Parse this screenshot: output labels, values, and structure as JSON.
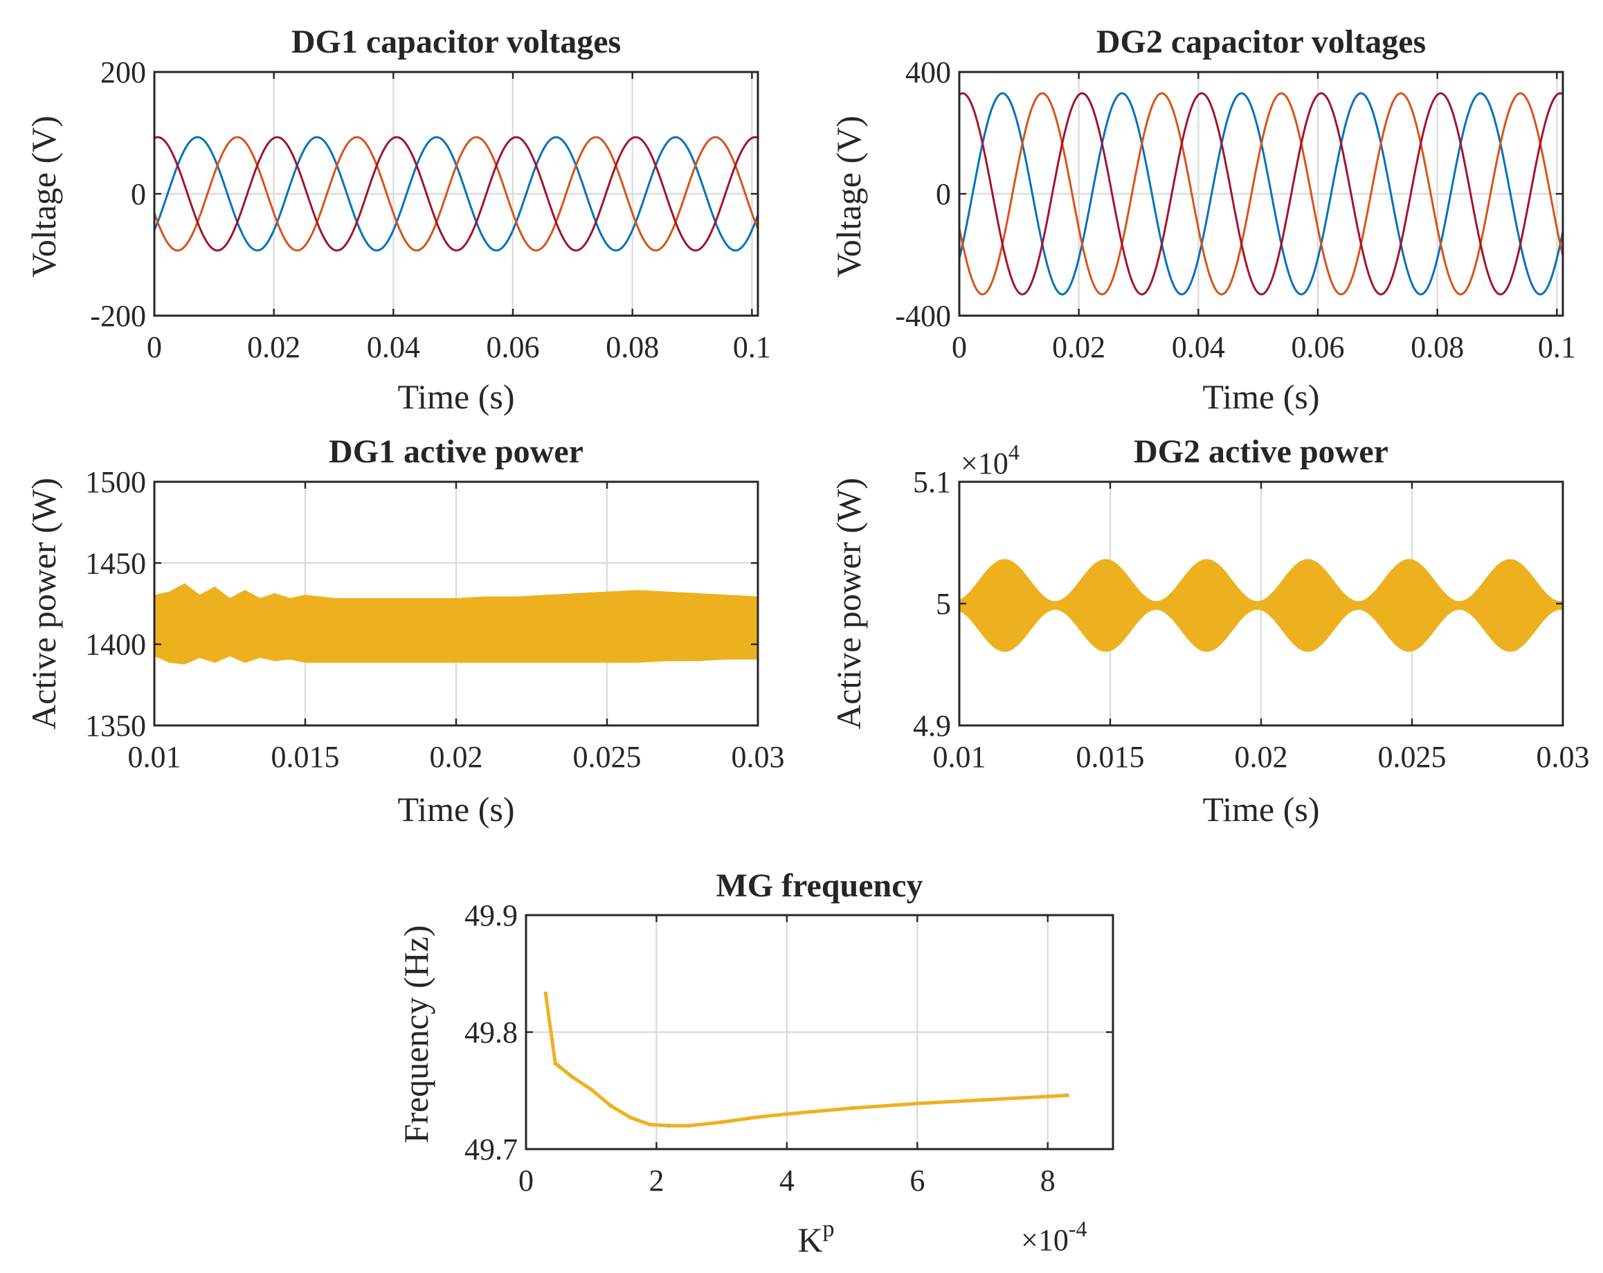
{
  "chart_data": [
    {
      "type": "line",
      "title": "DG1 capacitor voltages",
      "xlabel": "Time (s)",
      "ylabel": "Voltage (V)",
      "xlim": [
        0,
        0.101
      ],
      "ylim": [
        -200,
        200
      ],
      "xticks": [
        0,
        0.02,
        0.04,
        0.06,
        0.08,
        0.1
      ],
      "xtick_labels": [
        "0",
        "0.02",
        "0.04",
        "0.06",
        "0.08",
        "0.1"
      ],
      "yticks": [
        -200,
        0,
        200
      ],
      "ytick_labels": [
        "-200",
        "0",
        "200"
      ],
      "grid": true,
      "description_of_signal": "three-phase sinusoids, 50 Hz, amplitude 93 V, 120 degree phase shift",
      "series": [
        {
          "kind": "sine",
          "amplitude": 93,
          "frequency_hz": 50,
          "phase_deg": -40,
          "color": "#0072BD"
        },
        {
          "kind": "sine",
          "amplitude": 93,
          "frequency_hz": 50,
          "phase_deg": -160,
          "color": "#D95319"
        },
        {
          "kind": "sine",
          "amplitude": 93,
          "frequency_hz": 50,
          "phase_deg": 80,
          "color": "#A2142F"
        }
      ]
    },
    {
      "type": "line",
      "title": "DG2 capacitor voltages",
      "xlabel": "Time (s)",
      "ylabel": "Voltage (V)",
      "xlim": [
        0,
        0.101
      ],
      "ylim": [
        -400,
        400
      ],
      "xticks": [
        0,
        0.02,
        0.04,
        0.06,
        0.08,
        0.1
      ],
      "xtick_labels": [
        "0",
        "0.02",
        "0.04",
        "0.06",
        "0.08",
        "0.1"
      ],
      "yticks": [
        -400,
        0,
        400
      ],
      "ytick_labels": [
        "-400",
        "0",
        "400"
      ],
      "grid": true,
      "series": [
        {
          "kind": "sine",
          "amplitude": 330,
          "frequency_hz": 50,
          "phase_deg": -40,
          "color": "#0072BD"
        },
        {
          "kind": "sine",
          "amplitude": 330,
          "frequency_hz": 50,
          "phase_deg": -160,
          "color": "#D95319"
        },
        {
          "kind": "sine",
          "amplitude": 330,
          "frequency_hz": 50,
          "phase_deg": 80,
          "color": "#A2142F"
        }
      ]
    },
    {
      "type": "area",
      "title": "DG1 active power",
      "xlabel": "Time (s)",
      "ylabel": "Active power (W)",
      "xlim": [
        0.01,
        0.03
      ],
      "ylim": [
        1350,
        1500
      ],
      "xticks": [
        0.01,
        0.015,
        0.02,
        0.025,
        0.03
      ],
      "xtick_labels": [
        "0.01",
        "0.015",
        "0.02",
        "0.025",
        "0.03"
      ],
      "yticks": [
        1350,
        1400,
        1450,
        1500
      ],
      "ytick_labels": [
        "1350",
        "1400",
        "1450",
        "1500"
      ],
      "grid": true,
      "color": "#EDB120",
      "envelope": {
        "x": [
          0.01,
          0.0105,
          0.011,
          0.0115,
          0.012,
          0.0125,
          0.013,
          0.0135,
          0.014,
          0.0145,
          0.015,
          0.016,
          0.017,
          0.018,
          0.019,
          0.02,
          0.021,
          0.022,
          0.023,
          0.024,
          0.025,
          0.026,
          0.027,
          0.028,
          0.029,
          0.03
        ],
        "upper": [
          1430,
          1432,
          1437,
          1430,
          1435,
          1428,
          1433,
          1428,
          1431,
          1428,
          1430,
          1428,
          1428,
          1428,
          1428,
          1428,
          1429,
          1429,
          1430,
          1431,
          1432,
          1433,
          1432,
          1431,
          1430,
          1429
        ],
        "lower": [
          1393,
          1389,
          1388,
          1392,
          1389,
          1393,
          1389,
          1392,
          1390,
          1391,
          1389,
          1389,
          1389,
          1389,
          1389,
          1389,
          1389,
          1389,
          1389,
          1389,
          1389,
          1389,
          1390,
          1390,
          1391,
          1391
        ]
      }
    },
    {
      "type": "area",
      "title": "DG2 active power",
      "xlabel": "Time (s)",
      "ylabel": "Active power (W)",
      "axis_multiplier": "×10^4",
      "xlim": [
        0.01,
        0.03
      ],
      "ylim": [
        4.9,
        5.1
      ],
      "xticks": [
        0.01,
        0.015,
        0.02,
        0.025,
        0.03
      ],
      "xtick_labels": [
        "0.01",
        "0.015",
        "0.02",
        "0.025",
        "0.03"
      ],
      "yticks": [
        4.9,
        5.0,
        5.1
      ],
      "ytick_labels": [
        "4.9",
        "5",
        "5.1"
      ],
      "grid": true,
      "color": "#EDB120",
      "envelope": {
        "center": 4.9985,
        "amplitude_min": 0.003,
        "amplitude_max": 0.0375,
        "beat_period_s": 0.00335,
        "first_peak_s": 0.0115
      }
    },
    {
      "type": "line",
      "title": "MG frequency",
      "xlabel": "K^p",
      "ylabel": "Frequency (Hz)",
      "axis_multiplier": "×10^-4",
      "xlim": [
        0,
        9
      ],
      "ylim": [
        49.7,
        49.9
      ],
      "xticks": [
        0,
        2,
        4,
        6,
        8
      ],
      "xtick_labels": [
        "0",
        "2",
        "4",
        "6",
        "8"
      ],
      "yticks": [
        49.7,
        49.8,
        49.9
      ],
      "ytick_labels": [
        "49.7",
        "49.8",
        "49.9"
      ],
      "grid": true,
      "series": [
        {
          "color": "#EDB120",
          "x": [
            0.3,
            0.45,
            0.5,
            0.7,
            1.0,
            1.3,
            1.6,
            1.9,
            2.2,
            2.5,
            3.0,
            3.5,
            4.0,
            5.0,
            6.0,
            7.0,
            8.0,
            8.3
          ],
          "values": [
            49.833,
            49.773,
            49.771,
            49.762,
            49.751,
            49.737,
            49.727,
            49.721,
            49.72,
            49.72,
            49.723,
            49.727,
            49.73,
            49.735,
            49.739,
            49.742,
            49.745,
            49.746
          ]
        }
      ]
    }
  ]
}
